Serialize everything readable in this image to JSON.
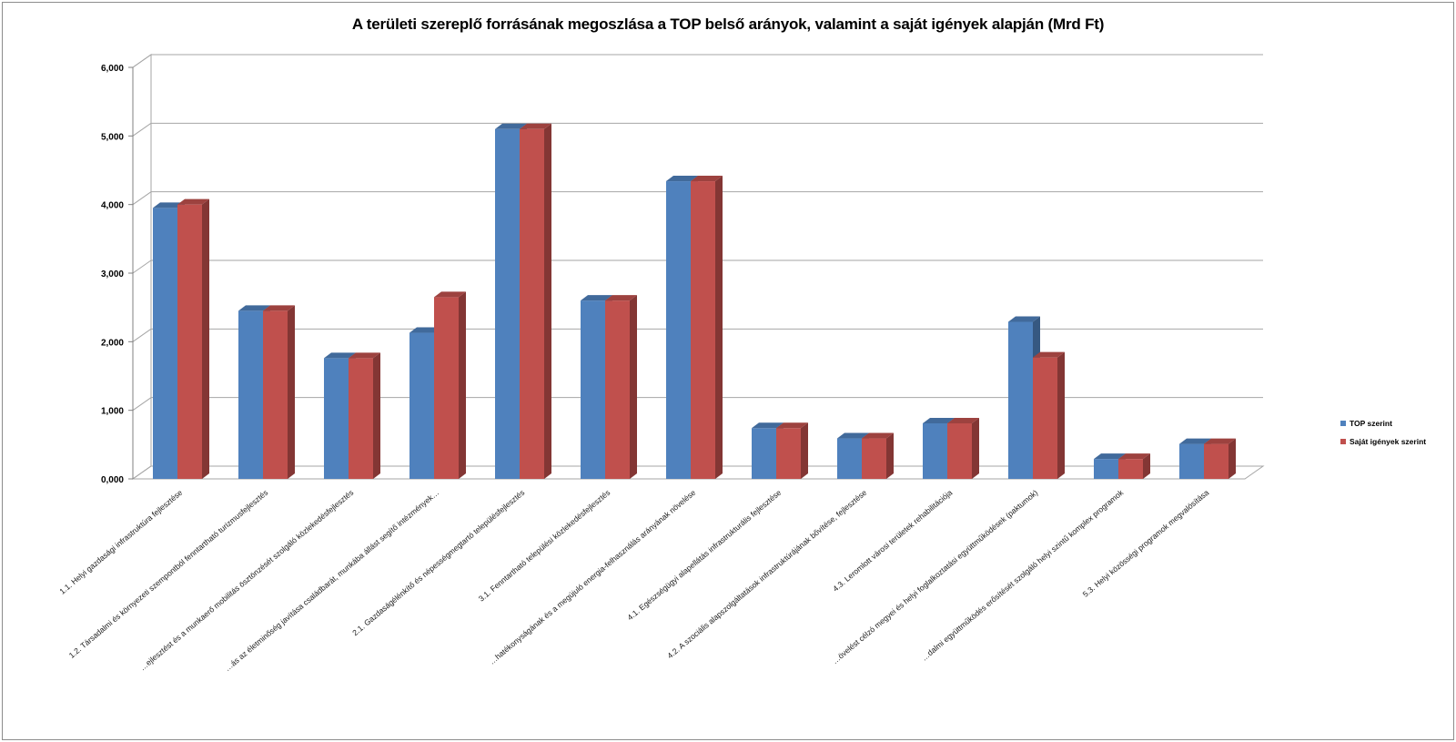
{
  "chart_data": {
    "type": "bar",
    "title": "A területi szereplő forrásának megoszlása a TOP belső arányok, valamint a saját igények alapján (Mrd Ft)",
    "ylim": [
      0,
      6
    ],
    "yticks": [
      "0,000",
      "1,000",
      "2,000",
      "3,000",
      "4,000",
      "5,000",
      "6,000"
    ],
    "grid": true,
    "legend_position": "right",
    "categories": [
      "1.1. Helyi gazdasági infrastruktúra fejlesztése",
      "1.2. Társadalmi és környezeti szempontból fenntartható turizmusfejlesztés",
      "…ejlesztést és a munkaerő mobilitás ösztönzését szolgáló közlekedésfejlesztés",
      "…ás az életminőség javítása családbarát, munkába állást segítő intézmények…",
      "2.1. Gazdaságélénkítő és népességmegtartó településfejlesztés",
      "3.1. Fenntartható települési közlekedésfejlesztés",
      "…hatékonyságának és a megújuló energia-felhasználás arányának növelése",
      "4.1. Egészségügyi alapellátás infrastrukturális fejlesztése",
      "4.2. A szociális alapszolgáltatások infrastruktúrájának bővítése, fejlesztése",
      "4.3. Leromlott városi területek rehabilitációja",
      "…övelést célzó megyei és helyi foglalkoztatási együttműködések (paktumok)",
      "…dalmi együttműködés erősítését szolgáló helyi szintű komplex programok",
      "5.3. Helyi közösségi programok megvalósítása"
    ],
    "series": [
      {
        "name": "TOP szerint",
        "color": "#4f81bd",
        "values": [
          3.95,
          2.45,
          1.76,
          2.13,
          5.1,
          2.6,
          4.34,
          0.74,
          0.59,
          0.81,
          2.29,
          0.29,
          0.51
        ]
      },
      {
        "name": "Saját igények szerint",
        "color": "#c0504d",
        "values": [
          4.0,
          2.45,
          1.76,
          2.65,
          5.1,
          2.6,
          4.34,
          0.74,
          0.59,
          0.81,
          1.77,
          0.29,
          0.51
        ]
      }
    ]
  }
}
